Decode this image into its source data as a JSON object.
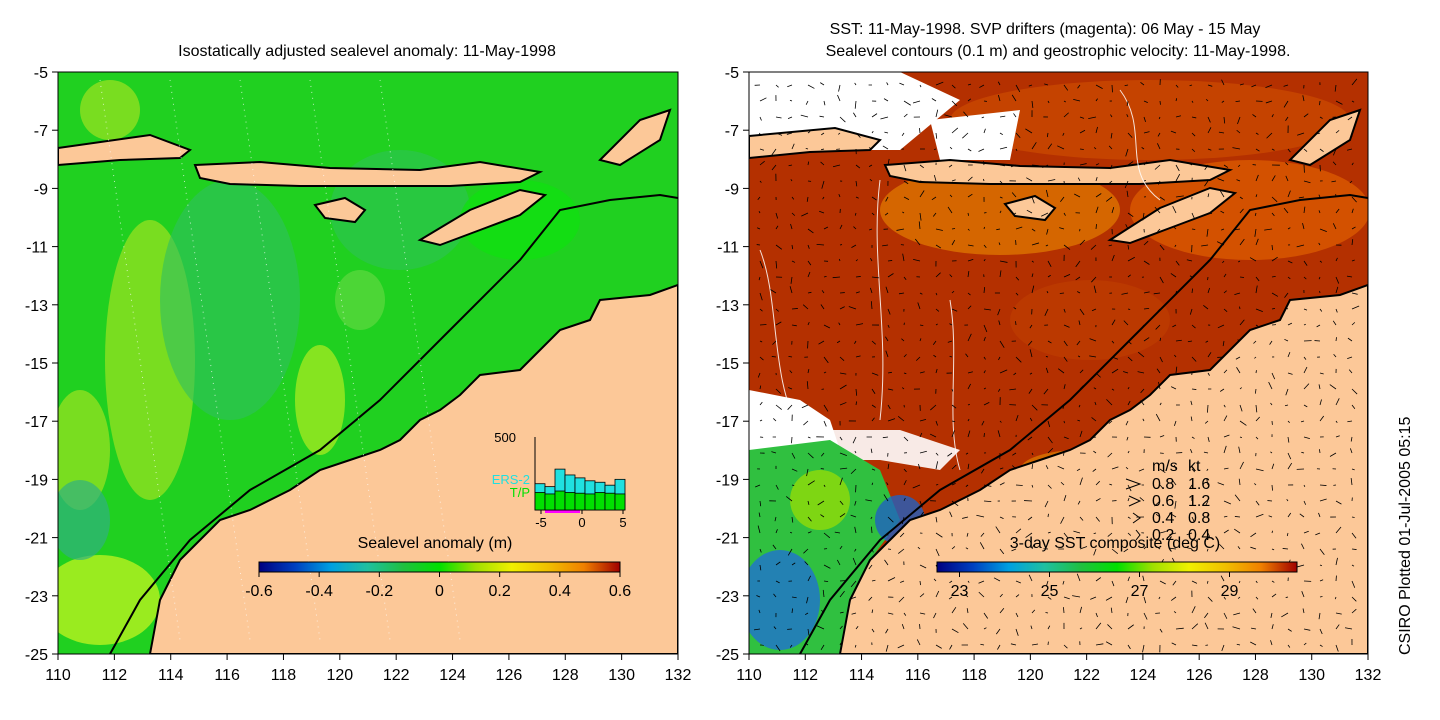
{
  "chart_data": [
    {
      "type": "heatmap",
      "title": "Isostatically adjusted sealevel anomaly: 11-May-1998",
      "xlim": [
        110,
        132
      ],
      "ylim": [
        -25,
        -5
      ],
      "xticks": [
        "110",
        "112",
        "114",
        "116",
        "118",
        "120",
        "122",
        "124",
        "126",
        "128",
        "130",
        "132"
      ],
      "yticks": [
        "-5",
        "-7",
        "-9",
        "-11",
        "-13",
        "-15",
        "-17",
        "-19",
        "-21",
        "-23",
        "-25"
      ],
      "colorbar": {
        "title": "Sealevel anomaly (m)",
        "range": [
          -0.6,
          0.6
        ],
        "ticks": [
          "-0.6",
          "-0.4",
          "-0.2",
          "0",
          "0.2",
          "0.4",
          "0.6"
        ],
        "colors": [
          "#000080",
          "#0040c0",
          "#00a0e0",
          "#20c0a0",
          "#20c040",
          "#00e000",
          "#a0e000",
          "#f0f000",
          "#f0c000",
          "#f08000",
          "#e04000",
          "#a00000"
        ]
      },
      "inset": {
        "ymax_label": "500",
        "xticks": [
          "-5",
          "0",
          "5"
        ],
        "legend": [
          {
            "name": "ERS-2",
            "color": "#20e0e0"
          },
          {
            "name": "T/P",
            "color": "#00e000"
          }
        ],
        "ers2_counts": [
          180,
          160,
          280,
          240,
          220,
          200,
          190,
          170,
          210
        ],
        "tp_counts": [
          120,
          110,
          130,
          120,
          115,
          110,
          120,
          115,
          110
        ]
      }
    },
    {
      "type": "heatmap",
      "title": "SST: 11-May-1998. SVP drifters (magenta): 06 May - 15 May",
      "subtitle": "Sealevel contours (0.1 m) and geostrophic velocity: 11-May-1998.",
      "xlim": [
        110,
        132
      ],
      "ylim": [
        -25,
        -5
      ],
      "xticks": [
        "110",
        "112",
        "114",
        "116",
        "118",
        "120",
        "122",
        "124",
        "126",
        "128",
        "130",
        "132"
      ],
      "yticks": [
        "-5",
        "-7",
        "-9",
        "-11",
        "-13",
        "-15",
        "-17",
        "-19",
        "-21",
        "-23",
        "-25"
      ],
      "colorbar": {
        "title": "3-day SST composite (deg C)",
        "range": [
          22.5,
          30.5
        ],
        "ticks": [
          "23",
          "25",
          "27",
          "29"
        ],
        "colors": [
          "#000080",
          "#0040c0",
          "#00a0e0",
          "#20c0a0",
          "#20c040",
          "#00e000",
          "#a0e000",
          "#f0f000",
          "#f0c000",
          "#f08000",
          "#e04000",
          "#a00000"
        ]
      },
      "velocity_key": {
        "header_ms": "m/s",
        "header_kt": "kt",
        "rows": [
          {
            "ms": "0.8",
            "kt": "1.6"
          },
          {
            "ms": "0.6",
            "kt": "1.2"
          },
          {
            "ms": "0.4",
            "kt": "0.8"
          },
          {
            "ms": "0.2",
            "kt": "0.4"
          }
        ]
      }
    }
  ],
  "footer": {
    "credit": "CSIRO Plotted 01-Jul-2005 05:15"
  },
  "colors": {
    "land": "#fcc898",
    "sla_base": "#20d020",
    "sst_base": "#b43000",
    "missing": "#ffffff"
  }
}
